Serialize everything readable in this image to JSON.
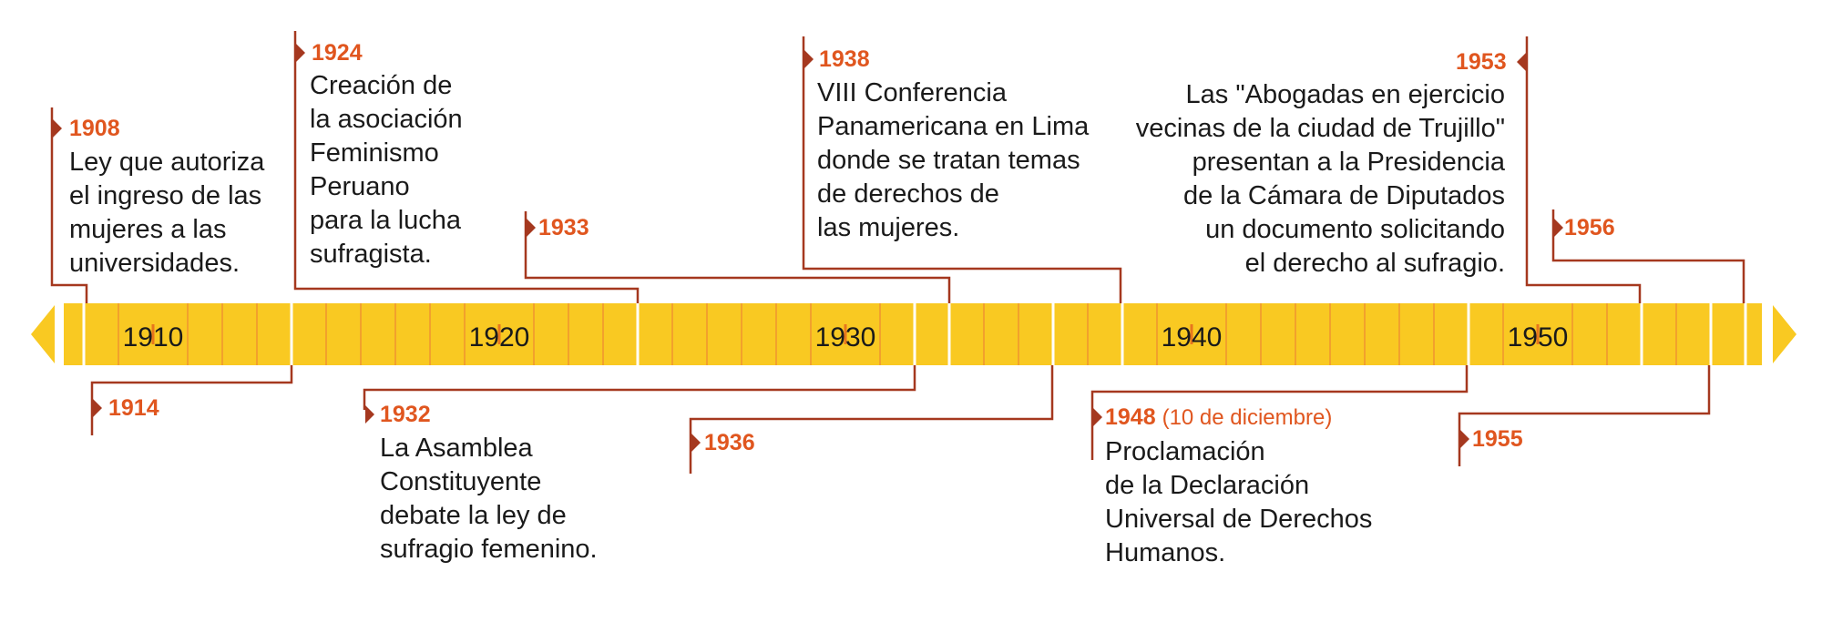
{
  "timeline": {
    "colors": {
      "band": "#f9c922",
      "minor_tick": "#f2a12c",
      "major_tick": "#e8761d",
      "connector": "#a5381f",
      "year": "#e0561f",
      "divider": "#ffffff"
    },
    "axis_labels": [
      "1910",
      "1920",
      "1930",
      "1940",
      "1950"
    ],
    "events": [
      {
        "id": "e1908",
        "year": "1908",
        "lines": [
          "Ley que autoriza",
          "el ingreso de las",
          "mujeres a las",
          "universidades."
        ]
      },
      {
        "id": "e1914",
        "year": "1914",
        "lines": []
      },
      {
        "id": "e1924",
        "year": "1924",
        "lines": [
          "Creación de",
          "la asociación",
          "Feminismo",
          "Peruano",
          "para la lucha",
          "sufragista."
        ]
      },
      {
        "id": "e1932",
        "year": "1932",
        "lines": [
          "La Asamblea",
          "Constituyente",
          "debate la ley de",
          "sufragio femenino."
        ]
      },
      {
        "id": "e1933",
        "year": "1933",
        "lines": []
      },
      {
        "id": "e1936",
        "year": "1936",
        "lines": []
      },
      {
        "id": "e1938",
        "year": "1938",
        "lines": [
          "VIII Conferencia",
          "Panamericana en Lima",
          "donde se tratan temas",
          "de derechos de",
          "las mujeres."
        ]
      },
      {
        "id": "e1948",
        "year": "1948",
        "note": "(10 de diciembre)",
        "lines": [
          "Proclamación",
          "de la Declaración",
          "Universal de Derechos",
          "Humanos."
        ]
      },
      {
        "id": "e1953",
        "year": "1953",
        "lines": [
          "Las \"Abogadas en ejercicio",
          "vecinas de la ciudad de Trujillo\"",
          "presentan a la Presidencia",
          "de la Cámara de Diputados",
          "un documento solicitando",
          "el derecho al sufragio."
        ]
      },
      {
        "id": "e1955",
        "year": "1955",
        "lines": []
      },
      {
        "id": "e1956",
        "year": "1956",
        "lines": []
      }
    ]
  }
}
